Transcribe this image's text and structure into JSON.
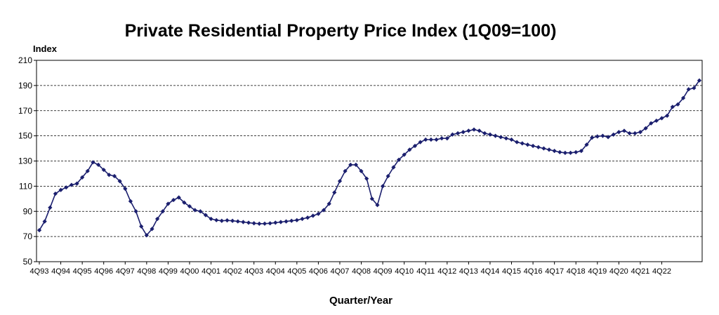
{
  "chart_data": {
    "type": "line",
    "title": "Private Residential Property Price Index (1Q09=100)",
    "ylabel": "Index",
    "xlabel": "Quarter/Year",
    "ylim": [
      50,
      210
    ],
    "yticks": [
      50,
      70,
      90,
      110,
      130,
      150,
      170,
      190,
      210
    ],
    "grid": "horizontal dashed",
    "line_color": "#1b1f6e",
    "x_tick_labels": [
      "4Q93",
      "4Q94",
      "4Q95",
      "4Q96",
      "4Q97",
      "4Q98",
      "4Q99",
      "4Q00",
      "4Q01",
      "4Q02",
      "4Q03",
      "4Q04",
      "4Q05",
      "4Q06",
      "4Q07",
      "4Q08",
      "4Q09",
      "4Q10",
      "4Q11",
      "4Q12",
      "4Q13",
      "4Q14",
      "4Q15",
      "4Q16",
      "4Q17",
      "4Q18",
      "4Q19",
      "4Q20",
      "4Q21",
      "4Q22"
    ],
    "series": [
      {
        "start": "4Q93",
        "values": [
          75,
          82,
          93,
          104,
          107,
          109,
          111,
          112,
          117,
          122,
          129,
          127,
          123,
          119,
          118,
          114,
          108,
          98,
          90,
          78,
          71,
          76,
          84,
          90,
          96,
          99,
          101,
          97,
          94,
          91,
          90,
          87,
          84,
          83,
          82.5,
          82.8,
          82.5,
          82,
          81.5,
          81,
          80.5,
          80.2,
          80.2,
          80.5,
          81,
          81.5,
          82,
          82.5,
          83,
          84,
          85,
          86.5,
          88,
          91,
          96,
          105,
          114,
          122,
          127,
          127,
          122,
          116,
          100,
          95,
          110,
          118,
          125,
          131,
          135,
          139,
          142,
          145,
          147,
          147,
          147,
          148,
          148,
          151,
          152,
          153,
          154,
          155,
          154,
          152,
          151,
          150,
          149,
          148,
          147,
          145,
          144,
          143,
          142,
          141,
          140,
          139,
          138,
          137,
          136.5,
          136.5,
          137,
          138,
          143,
          148.5,
          149.5,
          150,
          149,
          151,
          153,
          154,
          152,
          152,
          153,
          156,
          160,
          162,
          164,
          166,
          173,
          175,
          180,
          187,
          188,
          194
        ]
      }
    ]
  }
}
